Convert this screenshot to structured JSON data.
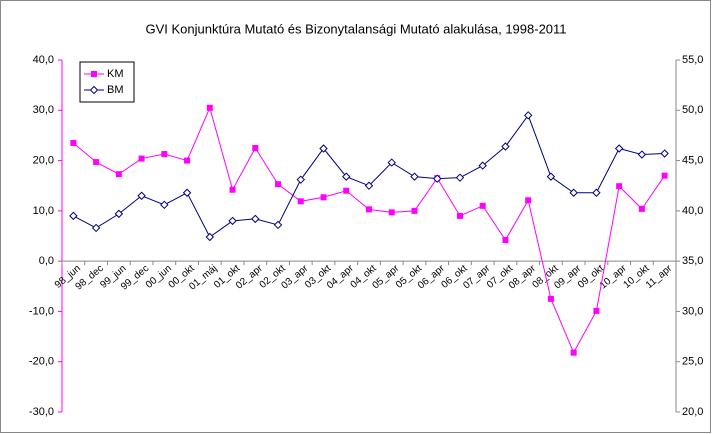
{
  "chart_data": {
    "type": "line",
    "title": "GVI Konjunktúra Mutató és Bizonytalansági Mutató alakulása, 1998-2011",
    "categories": [
      "98_jun",
      "98_dec",
      "99_jun",
      "99_dec",
      "00_jun",
      "00_okt",
      "01_máj",
      "01_okt",
      "02_apr",
      "02_okt",
      "03_apr",
      "03_okt",
      "04_apr",
      "04_okt",
      "05_apr",
      "05_okt",
      "06_apr",
      "06_okt",
      "07_apr",
      "07_okt",
      "08_apr",
      "08_okt",
      "09_apr",
      "09_okt",
      "10_apr",
      "10_okt",
      "11_apr"
    ],
    "series": [
      {
        "name": "KM",
        "color": "#ff00ff",
        "values": [
          23.5,
          19.7,
          17.3,
          20.4,
          21.3,
          20.0,
          30.5,
          14.2,
          22.5,
          15.3,
          11.9,
          12.7,
          14.0,
          10.3,
          9.7,
          10.0,
          16.5,
          9.0,
          11.0,
          4.2,
          12.1,
          -7.5,
          -18.2,
          -9.9,
          14.9,
          10.4,
          17.0
        ]
      },
      {
        "name": "BM",
        "color": "#000080",
        "axis": "y2",
        "values": [
          39.5,
          38.3,
          39.7,
          41.5,
          40.6,
          41.8,
          37.4,
          39.0,
          39.2,
          38.6,
          43.1,
          46.2,
          43.4,
          42.5,
          44.8,
          43.4,
          43.2,
          43.3,
          44.5,
          46.4,
          49.5,
          43.4,
          41.8,
          41.8,
          46.2,
          45.6,
          45.7
        ]
      }
    ],
    "ylim": [
      -30,
      40
    ],
    "yticks": [
      {
        "value": -30,
        "label": "-30,0"
      },
      {
        "value": -20,
        "label": "-20,0"
      },
      {
        "value": -10,
        "label": "-10,0"
      },
      {
        "value": 0,
        "label": "0,0"
      },
      {
        "value": 10,
        "label": "10,0"
      },
      {
        "value": 20,
        "label": "20,0"
      },
      {
        "value": 30,
        "label": "30,0"
      },
      {
        "value": 40,
        "label": "40,0"
      }
    ],
    "y2lim": [
      20,
      55
    ],
    "y2ticks": [
      {
        "value": 20,
        "label": "20,0"
      },
      {
        "value": 25,
        "label": "25,0"
      },
      {
        "value": 30,
        "label": "30,0"
      },
      {
        "value": 35,
        "label": "35,0"
      },
      {
        "value": 40,
        "label": "40,0"
      },
      {
        "value": 45,
        "label": "45,0"
      },
      {
        "value": 50,
        "label": "50,0"
      },
      {
        "value": 55,
        "label": "55,0"
      }
    ],
    "legend": "upper left"
  }
}
